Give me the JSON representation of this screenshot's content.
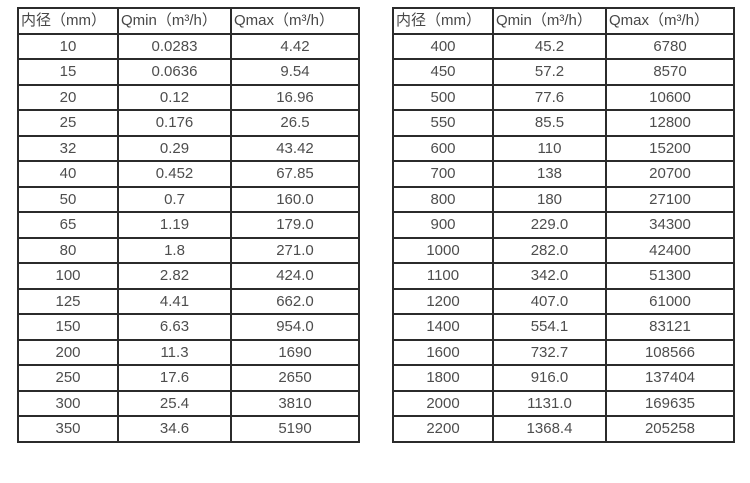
{
  "page": {
    "background": "#ffffff",
    "border_color": "#2b2b2b",
    "text_color": "#4d4d4d"
  },
  "tables": [
    {
      "name": "flow-rate-table-small-diameters",
      "headers": [
        "内径（mm）",
        "Qmin（m³/h）",
        "Qmax（m³/h）"
      ],
      "rows": [
        [
          "10",
          "0.0283",
          "4.42"
        ],
        [
          "15",
          "0.0636",
          "9.54"
        ],
        [
          "20",
          "0.12",
          "16.96"
        ],
        [
          "25",
          "0.176",
          "26.5"
        ],
        [
          "32",
          "0.29",
          "43.42"
        ],
        [
          "40",
          "0.452",
          "67.85"
        ],
        [
          "50",
          "0.7",
          "160.0"
        ],
        [
          "65",
          "1.19",
          "179.0"
        ],
        [
          "80",
          "1.8",
          "271.0"
        ],
        [
          "100",
          "2.82",
          "424.0"
        ],
        [
          "125",
          "4.41",
          "662.0"
        ],
        [
          "150",
          "6.63",
          "954.0"
        ],
        [
          "200",
          "11.3",
          "1690"
        ],
        [
          "250",
          "17.6",
          "2650"
        ],
        [
          "300",
          "25.4",
          "3810"
        ],
        [
          "350",
          "34.6",
          "5190"
        ]
      ]
    },
    {
      "name": "flow-rate-table-large-diameters",
      "headers": [
        "内径（mm）",
        "Qmin（m³/h）",
        "Qmax（m³/h）"
      ],
      "rows": [
        [
          "400",
          "45.2",
          "6780"
        ],
        [
          "450",
          "57.2",
          "8570"
        ],
        [
          "500",
          "77.6",
          "10600"
        ],
        [
          "550",
          "85.5",
          "12800"
        ],
        [
          "600",
          "110",
          "15200"
        ],
        [
          "700",
          "138",
          "20700"
        ],
        [
          "800",
          "180",
          "27100"
        ],
        [
          "900",
          "229.0",
          "34300"
        ],
        [
          "1000",
          "282.0",
          "42400"
        ],
        [
          "1100",
          "342.0",
          "51300"
        ],
        [
          "1200",
          "407.0",
          "61000"
        ],
        [
          "1400",
          "554.1",
          "83121"
        ],
        [
          "1600",
          "732.7",
          "108566"
        ],
        [
          "1800",
          "916.0",
          "137404"
        ],
        [
          "2000",
          "1131.0",
          "169635"
        ],
        [
          "2200",
          "1368.4",
          "205258"
        ]
      ]
    }
  ]
}
